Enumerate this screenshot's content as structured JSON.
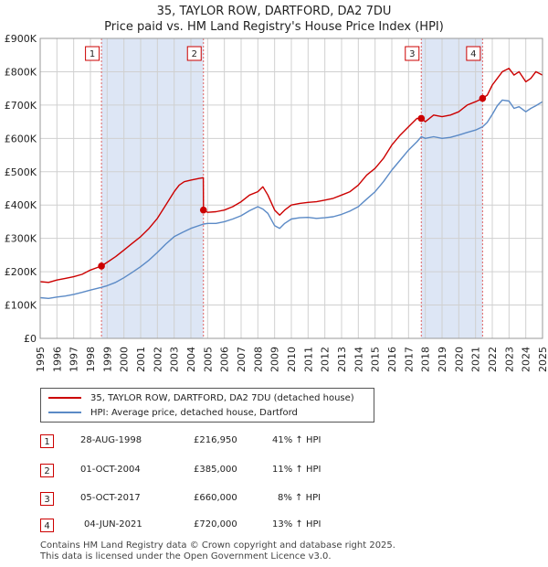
{
  "title": "35, TAYLOR ROW, DARTFORD, DA2 7DU",
  "subtitle": "Price paid vs. HM Land Registry's House Price Index (HPI)",
  "colors": {
    "property": "#cc0000",
    "hpi": "#5b8ac6",
    "shade": "#dde6f5",
    "grid": "#d0d0d0"
  },
  "chart_data": {
    "type": "line",
    "title": "35, TAYLOR ROW, DARTFORD, DA2 7DU",
    "xlim": [
      1995,
      2025
    ],
    "ylim": [
      0,
      900000
    ],
    "y_ticks": [
      0,
      100000,
      200000,
      300000,
      400000,
      500000,
      600000,
      700000,
      800000,
      900000
    ],
    "y_tick_labels": [
      "£0",
      "£100K",
      "£200K",
      "£300K",
      "£400K",
      "£500K",
      "£600K",
      "£700K",
      "£800K",
      "£900K"
    ],
    "x_ticks": [
      "1995",
      "1996",
      "1997",
      "1998",
      "1999",
      "2000",
      "2001",
      "2002",
      "2003",
      "2004",
      "2005",
      "2006",
      "2007",
      "2008",
      "2009",
      "2010",
      "2011",
      "2012",
      "2013",
      "2014",
      "2015",
      "2016",
      "2017",
      "2018",
      "2019",
      "2020",
      "2021",
      "2022",
      "2023",
      "2024",
      "2025"
    ],
    "shaded_periods": [
      [
        1998.66,
        2004.75
      ],
      [
        2017.76,
        2021.42
      ]
    ],
    "series": [
      {
        "name": "35, TAYLOR ROW, DARTFORD, DA2 7DU (detached house)",
        "x": [
          1995.0,
          1995.5,
          1996.0,
          1996.5,
          1997.0,
          1997.5,
          1998.0,
          1998.66,
          1999.0,
          1999.5,
          2000.0,
          2000.5,
          2001.0,
          2001.5,
          2002.0,
          2002.5,
          2003.0,
          2003.3,
          2003.6,
          2004.0,
          2004.5,
          2004.74,
          2004.75,
          2005.0,
          2005.5,
          2006.0,
          2006.5,
          2007.0,
          2007.5,
          2008.0,
          2008.3,
          2008.6,
          2009.0,
          2009.3,
          2009.6,
          2010.0,
          2010.5,
          2011.0,
          2011.5,
          2012.0,
          2012.5,
          2013.0,
          2013.5,
          2014.0,
          2014.5,
          2015.0,
          2015.5,
          2016.0,
          2016.5,
          2017.0,
          2017.5,
          2017.76,
          2018.0,
          2018.5,
          2019.0,
          2019.5,
          2020.0,
          2020.5,
          2021.0,
          2021.42,
          2021.7,
          2022.0,
          2022.3,
          2022.6,
          2023.0,
          2023.3,
          2023.6,
          2024.0,
          2024.3,
          2024.6,
          2025.0
        ],
        "values": [
          170000,
          168000,
          175000,
          180000,
          185000,
          192000,
          205000,
          216950,
          228000,
          245000,
          265000,
          285000,
          305000,
          330000,
          360000,
          400000,
          440000,
          460000,
          470000,
          475000,
          480000,
          482000,
          385000,
          378000,
          380000,
          385000,
          395000,
          410000,
          430000,
          440000,
          455000,
          430000,
          385000,
          370000,
          385000,
          400000,
          405000,
          408000,
          410000,
          415000,
          420000,
          430000,
          440000,
          460000,
          490000,
          510000,
          540000,
          580000,
          610000,
          635000,
          660000,
          660000,
          650000,
          670000,
          665000,
          670000,
          680000,
          700000,
          710000,
          720000,
          730000,
          760000,
          780000,
          800000,
          810000,
          790000,
          800000,
          770000,
          780000,
          800000,
          790000
        ]
      },
      {
        "name": "HPI: Average price, detached house, Dartford",
        "x": [
          1995.0,
          1995.5,
          1996.0,
          1996.5,
          1997.0,
          1997.5,
          1998.0,
          1998.66,
          1999.0,
          1999.5,
          2000.0,
          2000.5,
          2001.0,
          2001.5,
          2002.0,
          2002.5,
          2003.0,
          2003.5,
          2004.0,
          2004.75,
          2005.0,
          2005.5,
          2006.0,
          2006.5,
          2007.0,
          2007.5,
          2008.0,
          2008.3,
          2008.6,
          2009.0,
          2009.3,
          2009.6,
          2010.0,
          2010.5,
          2011.0,
          2011.5,
          2012.0,
          2012.5,
          2013.0,
          2013.5,
          2014.0,
          2014.5,
          2015.0,
          2015.5,
          2016.0,
          2016.5,
          2017.0,
          2017.5,
          2017.76,
          2018.0,
          2018.5,
          2019.0,
          2019.5,
          2020.0,
          2020.5,
          2021.0,
          2021.42,
          2021.7,
          2022.0,
          2022.3,
          2022.6,
          2023.0,
          2023.3,
          2023.6,
          2024.0,
          2024.3,
          2024.6,
          2025.0
        ],
        "values": [
          122000,
          120000,
          124000,
          127000,
          132000,
          138000,
          145000,
          153000,
          158000,
          168000,
          182000,
          198000,
          215000,
          235000,
          258000,
          283000,
          305000,
          318000,
          330000,
          343000,
          345000,
          345000,
          350000,
          358000,
          368000,
          383000,
          395000,
          388000,
          375000,
          338000,
          330000,
          345000,
          358000,
          362000,
          363000,
          360000,
          362000,
          365000,
          372000,
          382000,
          395000,
          418000,
          440000,
          470000,
          505000,
          535000,
          565000,
          590000,
          605000,
          600000,
          605000,
          600000,
          603000,
          610000,
          618000,
          625000,
          635000,
          648000,
          672000,
          698000,
          715000,
          712000,
          690000,
          695000,
          680000,
          690000,
          698000,
          710000
        ]
      }
    ],
    "sales": [
      {
        "label": "1",
        "x": 1998.66,
        "price": 216950,
        "date": "28-AUG-1998",
        "price_text": "£216,950",
        "hpi_text": "41% ↑ HPI"
      },
      {
        "label": "2",
        "x": 2004.75,
        "price": 385000,
        "date": "01-OCT-2004",
        "price_text": "£385,000",
        "hpi_text": "11% ↑ HPI"
      },
      {
        "label": "3",
        "x": 2017.76,
        "price": 660000,
        "date": "05-OCT-2017",
        "price_text": "£660,000",
        "hpi_text": "8% ↑ HPI"
      },
      {
        "label": "4",
        "x": 2021.42,
        "price": 720000,
        "date": "04-JUN-2021",
        "price_text": "£720,000",
        "hpi_text": "13% ↑ HPI"
      }
    ]
  },
  "legend": {
    "property": "35, TAYLOR ROW, DARTFORD, DA2 7DU (detached house)",
    "hpi": "HPI: Average price, detached house, Dartford"
  },
  "footer": {
    "line1": "Contains HM Land Registry data © Crown copyright and database right 2025.",
    "line2": "This data is licensed under the Open Government Licence v3.0."
  }
}
